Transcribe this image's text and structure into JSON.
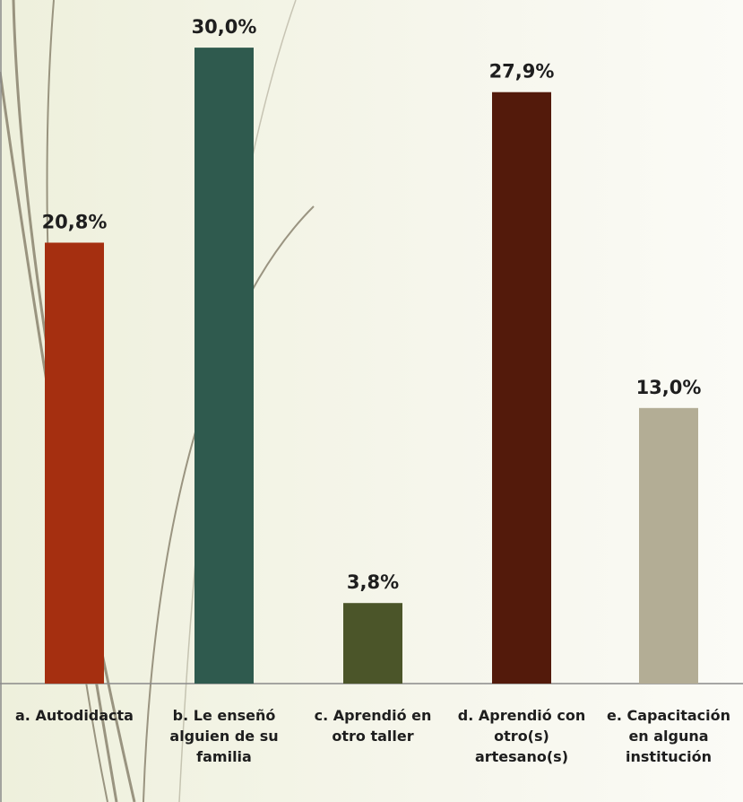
{
  "chart_data": {
    "type": "bar",
    "categories": [
      "a. Autodidacta",
      "b. Le enseñó alguien de su familia",
      "c. Aprendió en otro taller",
      "d. Aprendió con otro(s) artesano(s)",
      "e. Capacitación en alguna institución"
    ],
    "values": [
      20.8,
      30.0,
      3.8,
      27.9,
      13.0
    ],
    "value_labels": [
      "20,8%",
      "30,0%",
      "3,8%",
      "27,9%",
      "13,0%"
    ],
    "colors": [
      "#a52f10",
      "#2f5a4e",
      "#4b5529",
      "#531a0b",
      "#b3ad95"
    ]
  }
}
